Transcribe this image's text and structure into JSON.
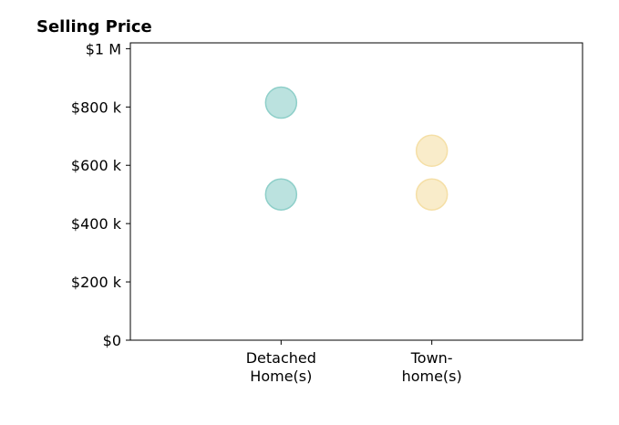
{
  "chart_data": {
    "type": "scatter",
    "title": "Selling Price",
    "xlabel": "",
    "ylabel": "",
    "categories": [
      [
        "Detached",
        "Home(s)"
      ],
      [
        "Town-",
        "home(s)"
      ]
    ],
    "yticks": [
      {
        "value": 0,
        "label": "$0"
      },
      {
        "value": 200000,
        "label": "$200 k"
      },
      {
        "value": 400000,
        "label": "$400 k"
      },
      {
        "value": 600000,
        "label": "$600 k"
      },
      {
        "value": 800000,
        "label": "$800 k"
      },
      {
        "value": 1000000,
        "label": "$1 M"
      }
    ],
    "ylim": [
      0,
      1020000
    ],
    "xlim": [
      -1,
      2
    ],
    "grid": false,
    "series": [
      {
        "color": "#8ecfc9",
        "points": [
          {
            "x": 0,
            "y": 815000
          },
          {
            "x": 0,
            "y": 500000
          }
        ]
      },
      {
        "color": "#f5dfa6",
        "points": [
          {
            "x": 1,
            "y": 650000
          },
          {
            "x": 1,
            "y": 500000
          }
        ]
      }
    ]
  }
}
